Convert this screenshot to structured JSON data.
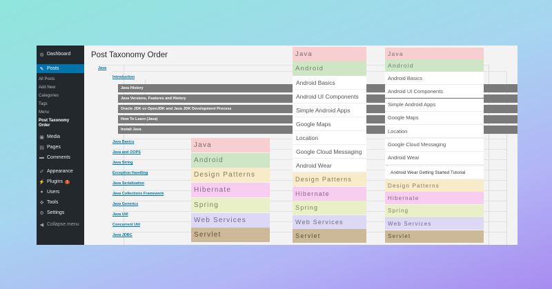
{
  "sidebar": {
    "items": [
      {
        "label": "Dashboard",
        "icon": "dashboard-icon",
        "glyph": "◍"
      },
      {
        "label": "Posts",
        "icon": "pin-icon",
        "glyph": "✎"
      },
      {
        "label": "Media",
        "icon": "media-icon",
        "glyph": "▣"
      },
      {
        "label": "Pages",
        "icon": "page-icon",
        "glyph": "▤"
      },
      {
        "label": "Comments",
        "icon": "comment-icon",
        "glyph": "▬"
      },
      {
        "label": "Appearance",
        "icon": "brush-icon",
        "glyph": "✐"
      },
      {
        "label": "Plugins",
        "icon": "plugin-icon",
        "glyph": "⚡",
        "badge": "1"
      },
      {
        "label": "Users",
        "icon": "users-icon",
        "glyph": "●"
      },
      {
        "label": "Tools",
        "icon": "wrench-icon",
        "glyph": "✜"
      },
      {
        "label": "Settings",
        "icon": "settings-icon",
        "glyph": "⚙"
      }
    ],
    "posts_submenu": [
      "All Posts",
      "Add New",
      "Categories",
      "Tags",
      "Menu",
      "Post Taxonomy Order"
    ],
    "collapse_label": "Collapse menu"
  },
  "page": {
    "title": "Post Taxonomy Order"
  },
  "tree": {
    "root": "Java",
    "intro": "Introduction",
    "intro_children": [
      "Java History",
      "Java Versions, Features and History",
      "Oracle JDK vs OpenJDK and Java JDK Development Process",
      "How To Learn (Java)",
      "Install Java"
    ],
    "topics": [
      "Java Basics",
      "Java and OOPS",
      "Java String",
      "Exception Handling",
      "Java Serialization",
      "Java Collections Framework",
      "Java Generics",
      "Java Util",
      "Concurrent Util",
      "Java JDBC"
    ]
  },
  "menus": {
    "categories": [
      {
        "label": "Java",
        "color": "#f8cfd0",
        "text": "#7a6a6a"
      },
      {
        "label": "Android",
        "color": "#cfe6c6",
        "text": "#6f7f68"
      },
      {
        "label": "Design Patterns",
        "color": "#f7ebca",
        "text": "#84785a"
      },
      {
        "label": "Hibernate",
        "color": "#f7cdf0",
        "text": "#85668a"
      },
      {
        "label": "Spring",
        "color": "#e9f0c8",
        "text": "#7c8458"
      },
      {
        "label": "Web Services",
        "color": "#ddd8f5",
        "text": "#6f6a8a"
      },
      {
        "label": "Servlet",
        "color": "#cbb998",
        "text": "#5e5038"
      }
    ],
    "android_sub": [
      "Android Basics",
      "Android UI Components",
      "Simple Android Apps",
      "Google Maps",
      "Location",
      "Google Cloud Messaging",
      "Android Wear"
    ],
    "android_wear_child": "Android Wear Getting Started Tutorial"
  }
}
